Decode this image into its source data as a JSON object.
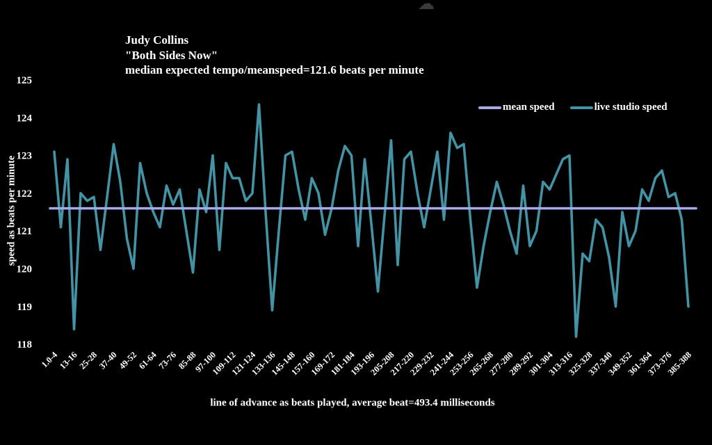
{
  "icon": {
    "cloud_glyph": "☁"
  },
  "chart_data": {
    "type": "line",
    "title_lines": [
      "Judy Collins",
      "\"Both Sides Now\"",
      "median expected tempo/meanspeed=121.6 beats per minute"
    ],
    "ylabel": "speed as beats per minute",
    "xlabel": "line of advance as beats played, average beat=493.4 milliseconds",
    "ylim": [
      118,
      125
    ],
    "yticks": [
      125,
      124,
      123,
      122,
      121,
      120,
      119,
      118
    ],
    "x_tick_labels": [
      "1.0-4",
      "13-16",
      "25-28",
      "37-40",
      "49-52",
      "61-64",
      "73-76",
      "85-88",
      "97-100",
      "109-112",
      "121-124",
      "133-136",
      "145-148",
      "157-160",
      "169-172",
      "181-184",
      "193-196",
      "205-208",
      "217-220",
      "229-232",
      "241-244",
      "253-256",
      "265-268",
      "277-280",
      "289-292",
      "301-304",
      "313-316",
      "325-328",
      "337-340",
      "349-352",
      "361-364",
      "373-376",
      "385-388"
    ],
    "grid": false,
    "legend_position": "top-right",
    "background": "#000000",
    "text_color": "#ffffff",
    "series": [
      {
        "name": "mean speed",
        "type": "hline",
        "value": 121.6,
        "color": "#a8a9e8"
      },
      {
        "name": "live studio speed",
        "type": "line",
        "color": "#4493a5",
        "values": [
          123.1,
          121.1,
          122.9,
          118.4,
          122.0,
          121.8,
          121.9,
          120.5,
          121.9,
          123.3,
          122.3,
          120.8,
          120.0,
          122.8,
          122.0,
          121.5,
          121.1,
          122.2,
          121.7,
          122.1,
          121.0,
          119.9,
          122.1,
          121.5,
          123.0,
          120.5,
          122.8,
          122.4,
          122.4,
          121.8,
          122.0,
          124.35,
          121.5,
          118.9,
          121.0,
          123.0,
          123.1,
          122.1,
          121.3,
          122.4,
          122.0,
          120.9,
          121.6,
          122.6,
          123.25,
          123.0,
          120.6,
          122.9,
          121.2,
          119.4,
          121.4,
          123.4,
          120.1,
          122.9,
          123.1,
          122.0,
          121.1,
          122.1,
          123.1,
          121.3,
          123.6,
          123.2,
          123.3,
          121.3,
          119.5,
          120.6,
          121.5,
          122.3,
          121.7,
          121.0,
          120.4,
          122.2,
          120.6,
          121.0,
          122.3,
          122.1,
          122.5,
          122.9,
          123.0,
          118.2,
          120.4,
          120.2,
          121.3,
          121.1,
          120.3,
          119.0,
          121.5,
          120.6,
          121.0,
          122.1,
          121.8,
          122.4,
          122.6,
          121.9,
          122.0,
          121.3,
          119.0
        ]
      }
    ]
  }
}
